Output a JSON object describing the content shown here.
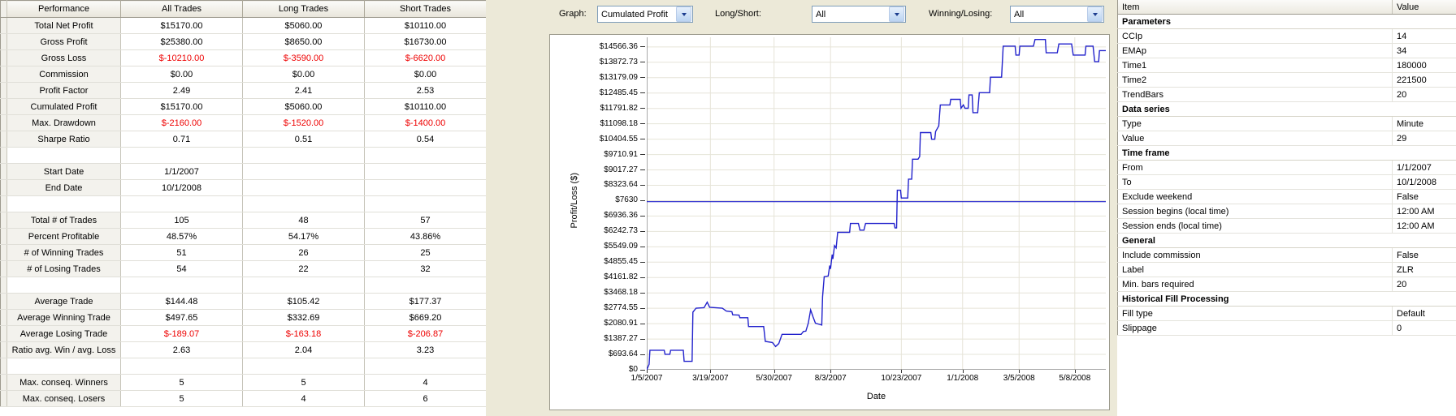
{
  "performance_table": {
    "columns": [
      "Performance",
      "All Trades",
      "Long Trades",
      "Short Trades"
    ],
    "rows": [
      {
        "label": "Total Net Profit",
        "values": [
          "$15170.00",
          "$5060.00",
          "$10110.00"
        ]
      },
      {
        "label": "Gross Profit",
        "values": [
          "$25380.00",
          "$8650.00",
          "$16730.00"
        ]
      },
      {
        "label": "Gross Loss",
        "values": [
          "$-10210.00",
          "$-3590.00",
          "$-6620.00"
        ]
      },
      {
        "label": "Commission",
        "values": [
          "$0.00",
          "$0.00",
          "$0.00"
        ]
      },
      {
        "label": "Profit Factor",
        "values": [
          "2.49",
          "2.41",
          "2.53"
        ]
      },
      {
        "label": "Cumulated Profit",
        "values": [
          "$15170.00",
          "$5060.00",
          "$10110.00"
        ]
      },
      {
        "label": "Max. Drawdown",
        "values": [
          "$-2160.00",
          "$-1520.00",
          "$-1400.00"
        ]
      },
      {
        "label": "Sharpe Ratio",
        "values": [
          "0.71",
          "0.51",
          "0.54"
        ]
      },
      {
        "label": "",
        "values": [
          "",
          "",
          ""
        ]
      },
      {
        "label": "Start Date",
        "values": [
          "1/1/2007",
          "",
          ""
        ]
      },
      {
        "label": "End Date",
        "values": [
          "10/1/2008",
          "",
          ""
        ]
      },
      {
        "label": "",
        "values": [
          "",
          "",
          ""
        ]
      },
      {
        "label": "Total # of Trades",
        "values": [
          "105",
          "48",
          "57"
        ]
      },
      {
        "label": "Percent Profitable",
        "values": [
          "48.57%",
          "54.17%",
          "43.86%"
        ]
      },
      {
        "label": "# of Winning Trades",
        "values": [
          "51",
          "26",
          "25"
        ]
      },
      {
        "label": "# of Losing Trades",
        "values": [
          "54",
          "22",
          "32"
        ]
      },
      {
        "label": "",
        "values": [
          "",
          "",
          ""
        ]
      },
      {
        "label": "Average Trade",
        "values": [
          "$144.48",
          "$105.42",
          "$177.37"
        ]
      },
      {
        "label": "Average Winning Trade",
        "values": [
          "$497.65",
          "$332.69",
          "$669.20"
        ]
      },
      {
        "label": "Average Losing Trade",
        "values": [
          "$-189.07",
          "$-163.18",
          "$-206.87"
        ]
      },
      {
        "label": "Ratio avg. Win / avg. Loss",
        "values": [
          "2.63",
          "2.04",
          "3.23"
        ]
      },
      {
        "label": "",
        "values": [
          "",
          "",
          ""
        ]
      },
      {
        "label": "Max. conseq. Winners",
        "values": [
          "5",
          "5",
          "4"
        ]
      },
      {
        "label": "Max. conseq. Losers",
        "values": [
          "5",
          "4",
          "6"
        ]
      }
    ]
  },
  "controls": {
    "graph": {
      "label": "Graph:",
      "value": "Cumulated Profit"
    },
    "long_short": {
      "label": "Long/Short:",
      "value": "All"
    },
    "winning_losing": {
      "label": "Winning/Losing:",
      "value": "All"
    }
  },
  "chart_data": {
    "type": "line",
    "title": "",
    "xlabel": "Date",
    "ylabel": "Profit/Loss ($)",
    "grid": true,
    "legend": "none",
    "x_range": [
      0,
      577
    ],
    "y_range": [
      0,
      15000
    ],
    "x_ticks": [
      {
        "pos": 0,
        "label": "1/5/2007"
      },
      {
        "pos": 80,
        "label": "3/19/2007"
      },
      {
        "pos": 160,
        "label": "5/30/2007"
      },
      {
        "pos": 231,
        "label": "8/3/2007"
      },
      {
        "pos": 320,
        "label": "10/23/2007"
      },
      {
        "pos": 397,
        "label": "1/1/2008"
      },
      {
        "pos": 468,
        "label": "3/5/2008"
      },
      {
        "pos": 538,
        "label": "5/8/2008"
      }
    ],
    "y_ticks": [
      {
        "value": 0,
        "label": "$0"
      },
      {
        "value": 693.64,
        "label": "$693.64"
      },
      {
        "value": 1387.27,
        "label": "$1387.27"
      },
      {
        "value": 2080.91,
        "label": "$2080.91"
      },
      {
        "value": 2774.55,
        "label": "$2774.55"
      },
      {
        "value": 3468.18,
        "label": "$3468.18"
      },
      {
        "value": 4161.82,
        "label": "$4161.82"
      },
      {
        "value": 4855.45,
        "label": "$4855.45"
      },
      {
        "value": 5549.09,
        "label": "$5549.09"
      },
      {
        "value": 6242.73,
        "label": "$6242.73"
      },
      {
        "value": 6936.36,
        "label": "$6936.36"
      },
      {
        "value": 7630,
        "label": "$7630"
      },
      {
        "value": 8323.64,
        "label": "$8323.64"
      },
      {
        "value": 9017.27,
        "label": "$9017.27"
      },
      {
        "value": 9710.91,
        "label": "$9710.91"
      },
      {
        "value": 10404.55,
        "label": "$10404.55"
      },
      {
        "value": 11098.18,
        "label": "$11098.18"
      },
      {
        "value": 11791.82,
        "label": "$11791.82"
      },
      {
        "value": 12485.45,
        "label": "$12485.45"
      },
      {
        "value": 13179.09,
        "label": "$13179.09"
      },
      {
        "value": 13872.73,
        "label": "$13872.73"
      },
      {
        "value": 14566.36,
        "label": "$14566.36"
      }
    ],
    "reference_line": {
      "y": 7585,
      "color": "#2222cc"
    },
    "series": [
      {
        "name": "Cumulated Profit",
        "color": "#2222cc",
        "points": [
          [
            0,
            0
          ],
          [
            3,
            250
          ],
          [
            4,
            880
          ],
          [
            22,
            880
          ],
          [
            23,
            700
          ],
          [
            29,
            700
          ],
          [
            30,
            880
          ],
          [
            46,
            880
          ],
          [
            47,
            380
          ],
          [
            57,
            380
          ],
          [
            58,
            2600
          ],
          [
            62,
            2780
          ],
          [
            72,
            2800
          ],
          [
            76,
            3050
          ],
          [
            79,
            2820
          ],
          [
            95,
            2780
          ],
          [
            100,
            2650
          ],
          [
            107,
            2620
          ],
          [
            108,
            2480
          ],
          [
            116,
            2470
          ],
          [
            117,
            2350
          ],
          [
            127,
            2350
          ],
          [
            128,
            1950
          ],
          [
            147,
            1950
          ],
          [
            149,
            1280
          ],
          [
            158,
            1230
          ],
          [
            162,
            1050
          ],
          [
            166,
            1180
          ],
          [
            170,
            1600
          ],
          [
            194,
            1600
          ],
          [
            197,
            1730
          ],
          [
            200,
            1740
          ],
          [
            203,
            2100
          ],
          [
            206,
            2700
          ],
          [
            209,
            2380
          ],
          [
            212,
            2100
          ],
          [
            217,
            2050
          ],
          [
            220,
            2020
          ],
          [
            221,
            3300
          ],
          [
            223,
            4200
          ],
          [
            228,
            4230
          ],
          [
            230,
            4700
          ],
          [
            231,
            4550
          ],
          [
            233,
            5200
          ],
          [
            234,
            5000
          ],
          [
            236,
            5600
          ],
          [
            238,
            5500
          ],
          [
            240,
            6200
          ],
          [
            255,
            6200
          ],
          [
            256,
            6600
          ],
          [
            266,
            6600
          ],
          [
            268,
            6300
          ],
          [
            273,
            6300
          ],
          [
            275,
            6600
          ],
          [
            311,
            6600
          ],
          [
            312,
            6400
          ],
          [
            314,
            6400
          ],
          [
            315,
            8100
          ],
          [
            319,
            8100
          ],
          [
            320,
            7750
          ],
          [
            328,
            7750
          ],
          [
            329,
            8600
          ],
          [
            333,
            8600
          ],
          [
            334,
            9500
          ],
          [
            341,
            9500
          ],
          [
            343,
            9620
          ],
          [
            344,
            10700
          ],
          [
            357,
            10700
          ],
          [
            358,
            10400
          ],
          [
            362,
            10400
          ],
          [
            363,
            10750
          ],
          [
            367,
            11000
          ],
          [
            369,
            11950
          ],
          [
            381,
            11950
          ],
          [
            382,
            12200
          ],
          [
            394,
            12200
          ],
          [
            395,
            11800
          ],
          [
            398,
            11950
          ],
          [
            400,
            11800
          ],
          [
            404,
            11800
          ],
          [
            405,
            12400
          ],
          [
            409,
            12400
          ],
          [
            410,
            11600
          ],
          [
            416,
            11600
          ],
          [
            418,
            12500
          ],
          [
            431,
            12500
          ],
          [
            432,
            13200
          ],
          [
            446,
            13200
          ],
          [
            448,
            14600
          ],
          [
            463,
            14600
          ],
          [
            464,
            14200
          ],
          [
            468,
            14200
          ],
          [
            469,
            14600
          ],
          [
            486,
            14600
          ],
          [
            488,
            14900
          ],
          [
            501,
            14900
          ],
          [
            502,
            14300
          ],
          [
            516,
            14300
          ],
          [
            518,
            14700
          ],
          [
            534,
            14700
          ],
          [
            536,
            14200
          ],
          [
            551,
            14200
          ],
          [
            552,
            14600
          ],
          [
            561,
            14600
          ],
          [
            563,
            13900
          ],
          [
            568,
            13900
          ],
          [
            569,
            14400
          ],
          [
            577,
            14400
          ]
        ]
      }
    ]
  },
  "properties_panel": {
    "columns": [
      "Item",
      "Value"
    ],
    "rows": [
      {
        "type": "category",
        "label": "Parameters"
      },
      {
        "type": "item",
        "label": "CCIp",
        "value": "14"
      },
      {
        "type": "item",
        "label": "EMAp",
        "value": "34"
      },
      {
        "type": "item",
        "label": "Time1",
        "value": "180000"
      },
      {
        "type": "item",
        "label": "Time2",
        "value": "221500"
      },
      {
        "type": "item",
        "label": "TrendBars",
        "value": "20"
      },
      {
        "type": "category",
        "label": "Data series"
      },
      {
        "type": "item",
        "label": "Type",
        "value": "Minute"
      },
      {
        "type": "item",
        "label": "Value",
        "value": "29"
      },
      {
        "type": "category",
        "label": "Time frame"
      },
      {
        "type": "item",
        "label": "From",
        "value": "1/1/2007"
      },
      {
        "type": "item",
        "label": "To",
        "value": "10/1/2008"
      },
      {
        "type": "item",
        "label": "Exclude weekend",
        "value": "False"
      },
      {
        "type": "item",
        "label": "Session begins (local time)",
        "value": "12:00 AM"
      },
      {
        "type": "item",
        "label": "Session ends (local time)",
        "value": "12:00 AM"
      },
      {
        "type": "category",
        "label": "General"
      },
      {
        "type": "item",
        "label": "Include commission",
        "value": "False"
      },
      {
        "type": "item",
        "label": "Label",
        "value": "ZLR"
      },
      {
        "type": "item",
        "label": "Min. bars required",
        "value": "20"
      },
      {
        "type": "category",
        "label": "Historical Fill Processing"
      },
      {
        "type": "item",
        "label": "Fill type",
        "value": "Default"
      },
      {
        "type": "item",
        "label": "Slippage",
        "value": "0"
      }
    ]
  },
  "colors": {
    "panel_background": "#ece9d8",
    "negative_value": "#ee0000",
    "curve": "#2222cc",
    "gridline": "#e6e4d8",
    "combo_border": "#7f9db9"
  }
}
